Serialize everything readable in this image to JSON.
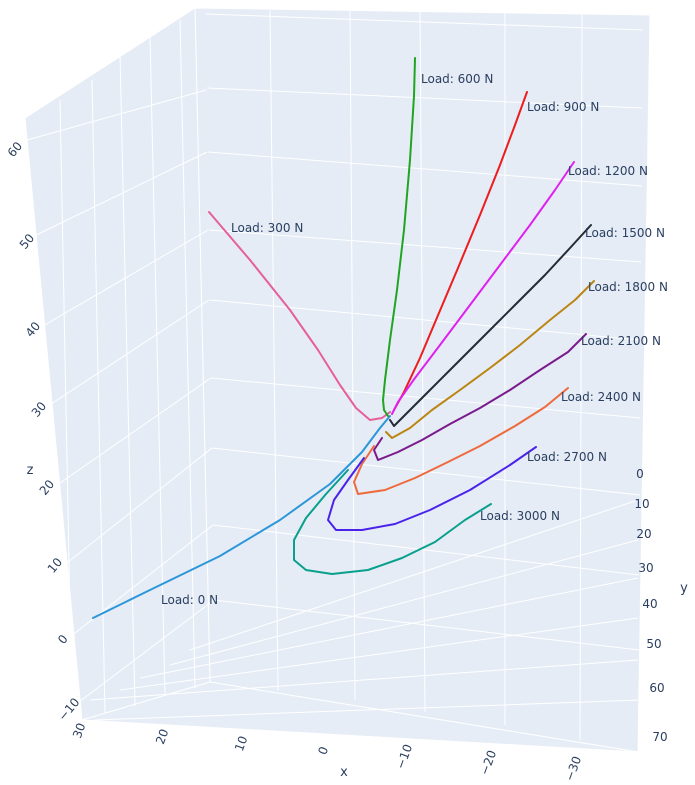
{
  "chart_data": {
    "type": "line",
    "projection": "3d",
    "title": "",
    "xlabel": "x",
    "ylabel": "y",
    "zlabel": "z",
    "x_ticks": [
      30,
      20,
      10,
      0,
      -10,
      -20,
      -30
    ],
    "y_ticks": [
      0,
      10,
      20,
      30,
      40,
      50,
      60,
      70
    ],
    "z_ticks": [
      -10,
      0,
      10,
      20,
      30,
      40,
      50,
      60
    ],
    "grid": true,
    "series": [
      {
        "name": "Load: 0 N",
        "color": "#2c96d8"
      },
      {
        "name": "Load: 300 N",
        "color": "#e5609a"
      },
      {
        "name": "Load: 600 N",
        "color": "#1fa51f"
      },
      {
        "name": "Load: 900 N",
        "color": "#ee1c1c"
      },
      {
        "name": "Load: 1200 N",
        "color": "#dd22f0"
      },
      {
        "name": "Load: 1500 N",
        "color": "#222a33"
      },
      {
        "name": "Load: 1800 N",
        "color": "#bb8511"
      },
      {
        "name": "Load: 2100 N",
        "color": "#7a1a8c"
      },
      {
        "name": "Load: 2400 N",
        "color": "#ee6a3c"
      },
      {
        "name": "Load: 2700 N",
        "color": "#4a22ea"
      },
      {
        "name": "Load: 3000 N",
        "color": "#08a08c"
      }
    ]
  }
}
